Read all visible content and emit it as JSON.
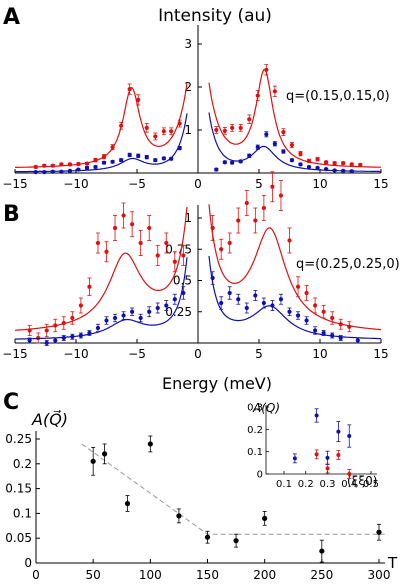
{
  "figure": {
    "panel_a_label": "A",
    "panel_b_label": "B",
    "panel_c_label": "C",
    "y_title_ab": "Intensity (au)",
    "x_title_ab": "Energy (meV)",
    "q_label_a": "q=(0.15,0.15,0)",
    "q_label_b": "q=(0.25,0.25,0)",
    "y_title_c_html": "A(Q&#8407;)",
    "x_title_c": "T",
    "inset_y_title": "A(Q)",
    "inset_x_title": "(ξξ0)"
  },
  "colors": {
    "red": "#e01010",
    "blue": "#1010b0",
    "black": "#000000",
    "dash": "#999999"
  },
  "chart_data": [
    {
      "type": "line",
      "id": "A",
      "xlim": [
        -15,
        15
      ],
      "xticks": [
        -15,
        -10,
        -5,
        0,
        5,
        10,
        15
      ],
      "yticks": [
        1,
        2,
        3
      ],
      "series": [
        {
          "color": "red",
          "points": [
            [
              -13.3,
              0.14,
              0.03
            ],
            [
              -12.6,
              0.17,
              0.03
            ],
            [
              -11.9,
              0.17,
              0.03
            ],
            [
              -11.2,
              0.2,
              0.03
            ],
            [
              -10.5,
              0.2,
              0.03
            ],
            [
              -9.8,
              0.21,
              0.03
            ],
            [
              -9.1,
              0.22,
              0.03
            ],
            [
              -8.4,
              0.3,
              0.04
            ],
            [
              -7.7,
              0.38,
              0.05
            ],
            [
              -7.0,
              0.6,
              0.06
            ],
            [
              -6.3,
              1.1,
              0.08
            ],
            [
              -5.6,
              1.95,
              0.12
            ],
            [
              -4.9,
              1.7,
              0.12
            ],
            [
              -4.2,
              1.05,
              0.1
            ],
            [
              -3.5,
              0.85,
              0.08
            ],
            [
              -2.8,
              0.97,
              0.08
            ],
            [
              -2.2,
              0.97,
              0.08
            ],
            [
              -1.5,
              1.15,
              0.08
            ],
            [
              1.5,
              1.0,
              0.08
            ],
            [
              2.2,
              0.98,
              0.08
            ],
            [
              2.8,
              1.05,
              0.08
            ],
            [
              3.5,
              1.05,
              0.08
            ],
            [
              4.2,
              1.25,
              0.1
            ],
            [
              4.9,
              1.8,
              0.12
            ],
            [
              5.6,
              2.4,
              0.12
            ],
            [
              6.3,
              1.9,
              0.12
            ],
            [
              7.0,
              0.95,
              0.08
            ],
            [
              7.7,
              0.65,
              0.06
            ],
            [
              8.4,
              0.45,
              0.05
            ],
            [
              9.1,
              0.28,
              0.04
            ],
            [
              9.8,
              0.32,
              0.04
            ],
            [
              10.5,
              0.25,
              0.03
            ],
            [
              11.2,
              0.23,
              0.03
            ],
            [
              11.9,
              0.23,
              0.03
            ],
            [
              12.6,
              0.2,
              0.03
            ],
            [
              13.3,
              0.19,
              0.03
            ]
          ]
        },
        {
          "color": "blue",
          "points": [
            [
              -13.3,
              0.02,
              0.02
            ],
            [
              -12.6,
              0.02,
              0.02
            ],
            [
              -11.9,
              0.03,
              0.02
            ],
            [
              -11.2,
              0.03,
              0.02
            ],
            [
              -10.5,
              0.05,
              0.02
            ],
            [
              -9.8,
              0.08,
              0.02
            ],
            [
              -9.1,
              0.12,
              0.03
            ],
            [
              -8.4,
              0.14,
              0.03
            ],
            [
              -7.7,
              0.24,
              0.03
            ],
            [
              -7.0,
              0.26,
              0.03
            ],
            [
              -6.3,
              0.3,
              0.03
            ],
            [
              -5.6,
              0.42,
              0.04
            ],
            [
              -4.9,
              0.4,
              0.04
            ],
            [
              -4.2,
              0.37,
              0.04
            ],
            [
              -3.5,
              0.3,
              0.03
            ],
            [
              -2.8,
              0.34,
              0.03
            ],
            [
              -2.2,
              0.33,
              0.03
            ],
            [
              -1.5,
              0.58,
              0.04
            ],
            [
              1.5,
              0.08,
              0.03
            ],
            [
              2.2,
              0.25,
              0.03
            ],
            [
              2.8,
              0.24,
              0.03
            ],
            [
              3.5,
              0.27,
              0.03
            ],
            [
              4.2,
              0.4,
              0.04
            ],
            [
              4.9,
              0.6,
              0.05
            ],
            [
              5.6,
              0.9,
              0.06
            ],
            [
              6.3,
              0.68,
              0.05
            ],
            [
              7.0,
              0.5,
              0.04
            ],
            [
              7.7,
              0.3,
              0.03
            ],
            [
              8.4,
              0.2,
              0.03
            ],
            [
              9.1,
              0.14,
              0.02
            ],
            [
              9.8,
              0.12,
              0.02
            ],
            [
              10.5,
              0.09,
              0.02
            ],
            [
              11.2,
              0.06,
              0.02
            ],
            [
              11.9,
              0.05,
              0.02
            ],
            [
              12.6,
              0.04,
              0.02
            ]
          ]
        }
      ]
    },
    {
      "type": "line",
      "id": "B",
      "xlim": [
        -15,
        15
      ],
      "xticks": [
        -15,
        -10,
        -5,
        0,
        5,
        10,
        15
      ],
      "yticks": [
        0.25,
        0.5,
        0.75,
        1
      ],
      "ytick_labels": [
        "0.25",
        "0.5",
        "0.75",
        "1"
      ],
      "series": [
        {
          "color": "red",
          "points": [
            [
              -13.8,
              0.1,
              0.04
            ],
            [
              -13.1,
              0.04,
              0.04
            ],
            [
              -12.4,
              0.1,
              0.05
            ],
            [
              -11.7,
              0.14,
              0.05
            ],
            [
              -11.0,
              0.16,
              0.05
            ],
            [
              -10.3,
              0.2,
              0.05
            ],
            [
              -9.6,
              0.3,
              0.06
            ],
            [
              -8.9,
              0.45,
              0.07
            ],
            [
              -8.2,
              0.8,
              0.08
            ],
            [
              -7.5,
              0.73,
              0.08
            ],
            [
              -6.8,
              0.92,
              0.1
            ],
            [
              -6.1,
              1.02,
              0.1
            ],
            [
              -5.4,
              0.95,
              0.1
            ],
            [
              -4.7,
              0.8,
              0.1
            ],
            [
              -4.0,
              0.92,
              0.1
            ],
            [
              -3.3,
              0.7,
              0.08
            ],
            [
              -2.6,
              0.8,
              0.08
            ],
            [
              -1.9,
              0.65,
              0.08
            ],
            [
              -1.2,
              0.7,
              0.08
            ],
            [
              1.2,
              0.92,
              0.1
            ],
            [
              1.9,
              0.75,
              0.08
            ],
            [
              2.6,
              0.8,
              0.08
            ],
            [
              3.3,
              0.98,
              0.1
            ],
            [
              4.0,
              1.12,
              0.1
            ],
            [
              4.7,
              0.98,
              0.1
            ],
            [
              5.4,
              1.08,
              0.1
            ],
            [
              6.1,
              1.25,
              0.12
            ],
            [
              6.8,
              1.18,
              0.12
            ],
            [
              7.5,
              0.82,
              0.1
            ],
            [
              8.2,
              0.45,
              0.08
            ],
            [
              8.9,
              0.4,
              0.06
            ],
            [
              9.6,
              0.3,
              0.06
            ],
            [
              10.3,
              0.25,
              0.05
            ],
            [
              11.0,
              0.2,
              0.05
            ],
            [
              11.7,
              0.15,
              0.04
            ],
            [
              12.4,
              0.13,
              0.04
            ]
          ]
        },
        {
          "color": "blue",
          "points": [
            [
              -13.8,
              0.02,
              0.02
            ],
            [
              -12.4,
              0.0,
              0.02
            ],
            [
              -11.7,
              0.02,
              0.02
            ],
            [
              -11.0,
              0.04,
              0.02
            ],
            [
              -10.3,
              0.05,
              0.02
            ],
            [
              -9.6,
              0.06,
              0.02
            ],
            [
              -8.9,
              0.08,
              0.02
            ],
            [
              -8.2,
              0.12,
              0.03
            ],
            [
              -7.5,
              0.18,
              0.03
            ],
            [
              -6.8,
              0.2,
              0.03
            ],
            [
              -6.1,
              0.22,
              0.03
            ],
            [
              -5.4,
              0.25,
              0.03
            ],
            [
              -4.7,
              0.2,
              0.03
            ],
            [
              -4.0,
              0.25,
              0.04
            ],
            [
              -3.3,
              0.28,
              0.04
            ],
            [
              -2.6,
              0.3,
              0.04
            ],
            [
              -1.9,
              0.35,
              0.04
            ],
            [
              -1.2,
              0.4,
              0.05
            ],
            [
              1.2,
              0.52,
              0.05
            ],
            [
              1.9,
              0.32,
              0.05
            ],
            [
              2.6,
              0.4,
              0.05
            ],
            [
              3.3,
              0.35,
              0.04
            ],
            [
              4.0,
              0.28,
              0.04
            ],
            [
              4.7,
              0.38,
              0.04
            ],
            [
              5.4,
              0.32,
              0.04
            ],
            [
              6.1,
              0.3,
              0.04
            ],
            [
              6.8,
              0.35,
              0.04
            ],
            [
              7.5,
              0.25,
              0.03
            ],
            [
              8.2,
              0.22,
              0.03
            ],
            [
              8.9,
              0.18,
              0.03
            ],
            [
              9.6,
              0.1,
              0.03
            ],
            [
              10.3,
              0.08,
              0.02
            ],
            [
              11.0,
              0.06,
              0.02
            ],
            [
              11.7,
              0.04,
              0.02
            ],
            [
              13.1,
              0.02,
              0.02
            ]
          ]
        }
      ]
    },
    {
      "type": "scatter",
      "id": "C",
      "xlim": [
        0,
        300
      ],
      "ylim": [
        0,
        0.25
      ],
      "xticks": [
        0,
        50,
        100,
        150,
        200,
        250,
        300
      ],
      "yticks": [
        0,
        0.05,
        0.1,
        0.15,
        0.2,
        0.25
      ],
      "ytick_labels": [
        "0",
        "0.05",
        "0.1",
        "0.15",
        "0.2",
        "0.25"
      ],
      "points": [
        [
          50,
          0.205,
          0.028
        ],
        [
          60,
          0.22,
          0.02
        ],
        [
          80,
          0.12,
          0.016
        ],
        [
          100,
          0.24,
          0.016
        ],
        [
          125,
          0.095,
          0.014
        ],
        [
          150,
          0.052,
          0.012
        ],
        [
          175,
          0.045,
          0.013
        ],
        [
          200,
          0.09,
          0.014
        ],
        [
          250,
          0.024,
          0.022
        ],
        [
          300,
          0.062,
          0.016
        ]
      ],
      "trend_line": [
        [
          40,
          0.24
        ],
        [
          150,
          0.058
        ],
        [
          305,
          0.058
        ]
      ]
    },
    {
      "type": "scatter",
      "id": "C-inset",
      "xlim": [
        0.05,
        0.5
      ],
      "ylim": [
        0,
        0.3
      ],
      "xticks": [
        0.1,
        0.2,
        0.3,
        0.4,
        0.5
      ],
      "xtick_labels": [
        "0.1",
        "0.2",
        "0.3",
        "0.4",
        "0.5"
      ],
      "yticks": [
        0,
        0.1,
        0.2,
        0.3
      ],
      "ytick_labels": [
        "0",
        "0.1",
        "0.2",
        "0.3"
      ],
      "series": [
        {
          "color": "blue",
          "points": [
            [
              0.15,
              0.07,
              0.02
            ],
            [
              0.25,
              0.262,
              0.03
            ],
            [
              0.3,
              0.072,
              0.03
            ],
            [
              0.35,
              0.19,
              0.045
            ],
            [
              0.4,
              0.17,
              0.05
            ]
          ]
        },
        {
          "color": "red",
          "points": [
            [
              0.25,
              0.088,
              0.02
            ],
            [
              0.3,
              0.025,
              0.02
            ],
            [
              0.35,
              0.085,
              0.02
            ],
            [
              0.4,
              0.0,
              0.02
            ]
          ]
        }
      ]
    }
  ]
}
